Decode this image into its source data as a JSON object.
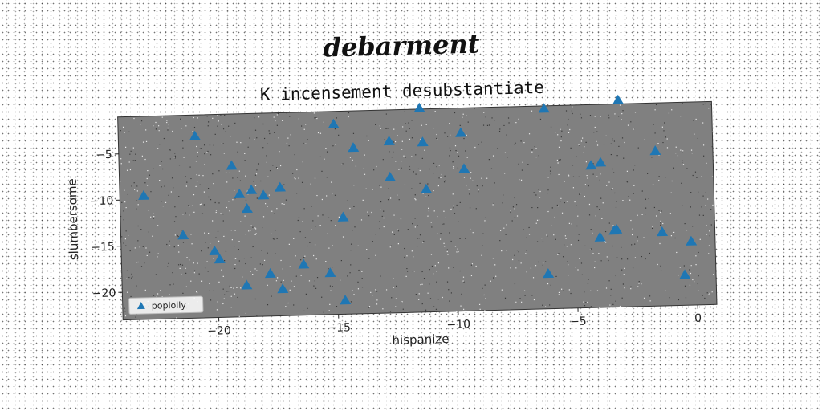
{
  "figure": {
    "title": "debarment"
  },
  "chart_data": {
    "type": "scatter",
    "title": "K incensement desubstantiate",
    "xlabel": "hispanize",
    "ylabel": "slumbersome",
    "xlim": [
      -24,
      0.8
    ],
    "ylim": [
      -23,
      -1
    ],
    "xticks": [
      -20,
      -15,
      -10,
      -5,
      0
    ],
    "yticks": [
      -5,
      -10,
      -15,
      -20
    ],
    "tick_labels_x": [
      "−20",
      "−15",
      "−10",
      "−5",
      "0"
    ],
    "tick_labels_y": [
      "−5",
      "−10",
      "−15",
      "−20"
    ],
    "grid": false,
    "legend_position": "lower-left",
    "background_color": "#808080",
    "marker_color": "#1f77b4",
    "series": [
      {
        "name": "poplolly",
        "marker": "triangle",
        "points": [
          [
            -23.0,
            -9.6
          ],
          [
            -20.8,
            -3.3
          ],
          [
            -21.4,
            -14.0
          ],
          [
            -20.1,
            -15.8
          ],
          [
            -19.9,
            -16.7
          ],
          [
            -19.3,
            -6.6
          ],
          [
            -19.0,
            -9.7
          ],
          [
            -18.7,
            -11.3
          ],
          [
            -18.5,
            -9.3
          ],
          [
            -18.0,
            -9.9
          ],
          [
            -17.3,
            -9.1
          ],
          [
            -17.8,
            -18.4
          ],
          [
            -17.3,
            -20.1
          ],
          [
            -16.4,
            -17.5
          ],
          [
            -18.8,
            -19.6
          ],
          [
            -15.3,
            -18.5
          ],
          [
            -15.0,
            -2.4
          ],
          [
            -14.7,
            -12.5
          ],
          [
            -14.7,
            -21.5
          ],
          [
            -14.2,
            -5.0
          ],
          [
            -12.7,
            -4.4
          ],
          [
            -12.7,
            -8.3
          ],
          [
            -11.3,
            -4.6
          ],
          [
            -11.2,
            -9.7
          ],
          [
            -11.4,
            -0.9
          ],
          [
            -9.7,
            -3.7
          ],
          [
            -9.6,
            -7.6
          ],
          [
            -6.2,
            -1.3
          ],
          [
            -6.2,
            -19.2
          ],
          [
            -4.3,
            -7.6
          ],
          [
            -3.9,
            -7.3
          ],
          [
            -4.0,
            -15.4
          ],
          [
            -3.4,
            -14.7
          ],
          [
            -3.3,
            -14.6
          ],
          [
            -3.1,
            -0.6
          ],
          [
            -1.6,
            -6.2
          ],
          [
            -1.4,
            -15.0
          ],
          [
            -0.5,
            -19.7
          ],
          [
            -0.2,
            -16.1
          ]
        ]
      }
    ]
  }
}
